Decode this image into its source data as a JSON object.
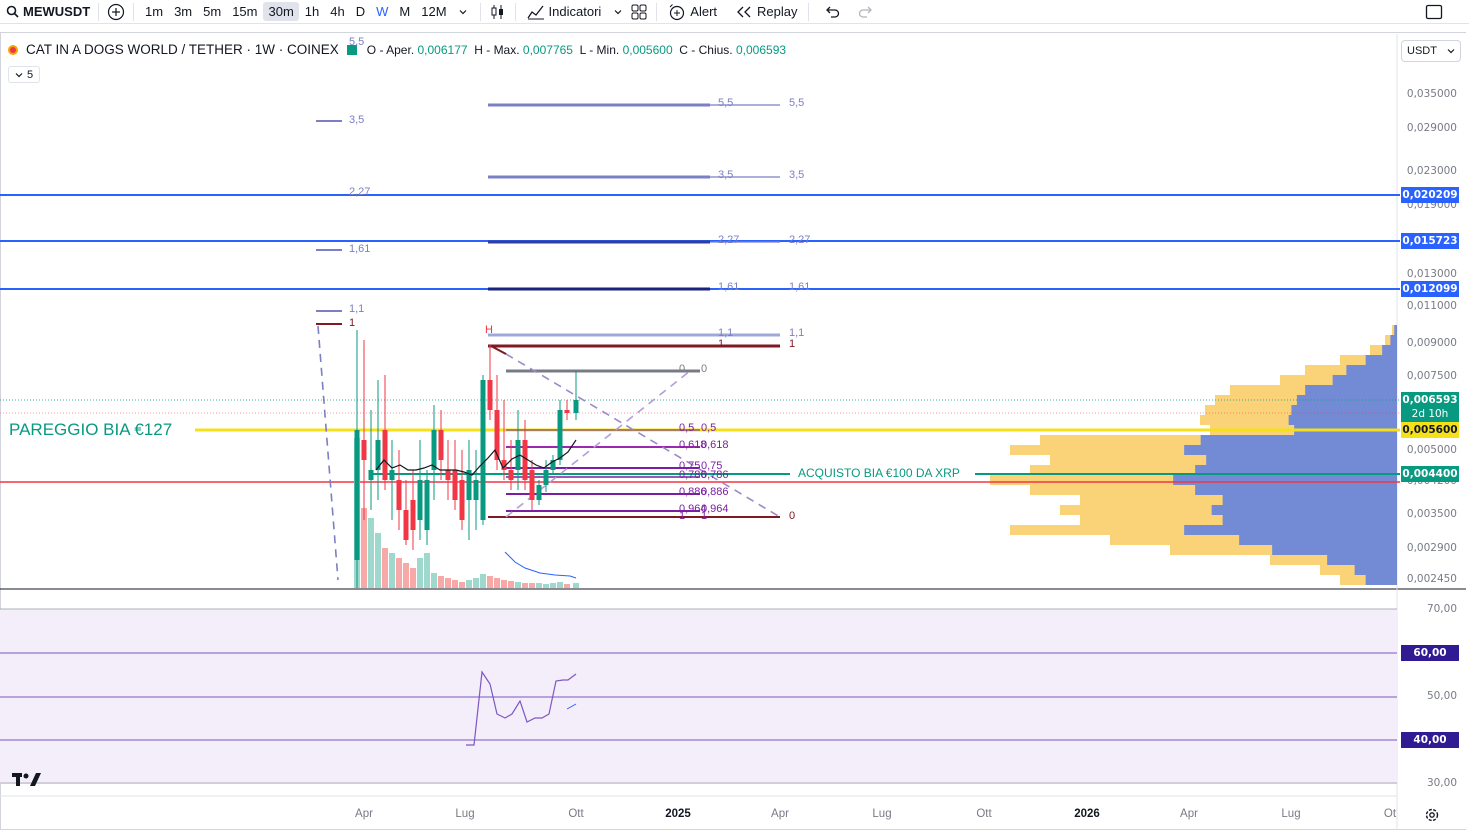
{
  "toolbar": {
    "symbol": "MEWUSDT",
    "intervals": [
      "1m",
      "3m",
      "5m",
      "15m",
      "30m",
      "1h",
      "4h",
      "D",
      "W",
      "M",
      "12M"
    ],
    "active_interval": "30m",
    "highlighted_interval": "W",
    "indicators_label": "Indicatori",
    "alert_label": "Alert",
    "replay_label": "Replay"
  },
  "legend": {
    "title": "CAT IN A DOGS WORLD / TETHER · 1W · COINEX",
    "open_label": "O - Aper.",
    "open": "0,006177",
    "high_label": "H - Max.",
    "high": "0,007765",
    "low_label": "L - Min.",
    "low": "0,005600",
    "close_label": "C - Chius.",
    "close": "0,006593",
    "collapsed_count": "5"
  },
  "currency": "USDT",
  "price_axis": [
    "0,035000",
    "0,029000",
    "0,023000",
    "0,019000",
    "0,013000",
    "0,011000",
    "0,009000",
    "0,007500",
    "0,005000",
    "0,004200",
    "0,003500",
    "0,002900",
    "0,002450"
  ],
  "price_tags": {
    "line1": "0,020209",
    "line2": "0,015723",
    "line3": "0,012099",
    "last": "0,006593",
    "countdown": "2d 10h",
    "yellow": "0,005600",
    "green": "0,004400"
  },
  "rsi_axis": [
    "70,00",
    "50,00",
    "30,00"
  ],
  "rsi_tags": {
    "upper": "60,00",
    "lower": "40,00"
  },
  "time_axis": [
    "Apr",
    "Lug",
    "Ott",
    "2025",
    "Apr",
    "Lug",
    "Ott",
    "2026",
    "Apr",
    "Lug",
    "Ot"
  ],
  "annotations": {
    "pareggio": "PAREGGIO BIA €127",
    "acquisto": "ACQUISTO BIA €100  DA XRP",
    "h_marker": "H"
  },
  "fib_levels_right": [
    "5,5",
    "3,5",
    "2,27",
    "1,61",
    "1,1",
    "1",
    "0"
  ],
  "fib_levels_left": [
    "5,5",
    "3,5",
    "2,27",
    "1,61",
    "1,1",
    "1"
  ],
  "retrace_labels": [
    "0",
    "0,5",
    "0,618",
    "0,75",
    "0,786",
    "0,886",
    "0,964",
    "1"
  ],
  "colors": {
    "up": "#089981",
    "down": "#f23645",
    "blue_line": "#2962ff",
    "yellow_line": "#f5e11a",
    "fib": "#7b7fc4",
    "rsi_bg": "#f3eefa",
    "rsi_line": "#7e57c2"
  }
}
